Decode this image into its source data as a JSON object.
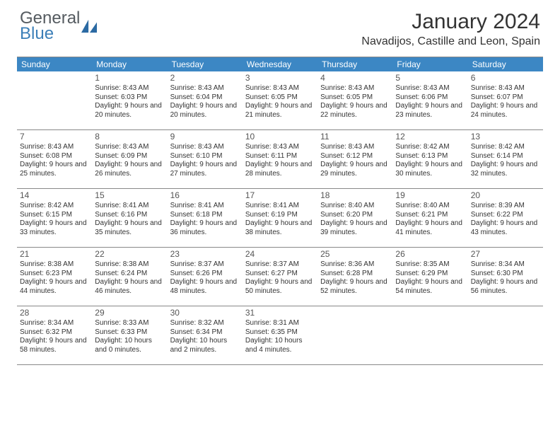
{
  "logo": {
    "text1": "General",
    "text2": "Blue"
  },
  "title": "January 2024",
  "location": "Navadijos, Castille and Leon, Spain",
  "colors": {
    "header_bg": "#3c87c4",
    "header_fg": "#ffffff",
    "border": "#888888",
    "logo_gray": "#555b60",
    "logo_blue": "#3c7fb8"
  },
  "days_of_week": [
    "Sunday",
    "Monday",
    "Tuesday",
    "Wednesday",
    "Thursday",
    "Friday",
    "Saturday"
  ],
  "weeks": [
    [
      null,
      {
        "n": "1",
        "sunrise": "8:43 AM",
        "sunset": "6:03 PM",
        "daylight": "9 hours and 20 minutes."
      },
      {
        "n": "2",
        "sunrise": "8:43 AM",
        "sunset": "6:04 PM",
        "daylight": "9 hours and 20 minutes."
      },
      {
        "n": "3",
        "sunrise": "8:43 AM",
        "sunset": "6:05 PM",
        "daylight": "9 hours and 21 minutes."
      },
      {
        "n": "4",
        "sunrise": "8:43 AM",
        "sunset": "6:05 PM",
        "daylight": "9 hours and 22 minutes."
      },
      {
        "n": "5",
        "sunrise": "8:43 AM",
        "sunset": "6:06 PM",
        "daylight": "9 hours and 23 minutes."
      },
      {
        "n": "6",
        "sunrise": "8:43 AM",
        "sunset": "6:07 PM",
        "daylight": "9 hours and 24 minutes."
      }
    ],
    [
      {
        "n": "7",
        "sunrise": "8:43 AM",
        "sunset": "6:08 PM",
        "daylight": "9 hours and 25 minutes."
      },
      {
        "n": "8",
        "sunrise": "8:43 AM",
        "sunset": "6:09 PM",
        "daylight": "9 hours and 26 minutes."
      },
      {
        "n": "9",
        "sunrise": "8:43 AM",
        "sunset": "6:10 PM",
        "daylight": "9 hours and 27 minutes."
      },
      {
        "n": "10",
        "sunrise": "8:43 AM",
        "sunset": "6:11 PM",
        "daylight": "9 hours and 28 minutes."
      },
      {
        "n": "11",
        "sunrise": "8:43 AM",
        "sunset": "6:12 PM",
        "daylight": "9 hours and 29 minutes."
      },
      {
        "n": "12",
        "sunrise": "8:42 AM",
        "sunset": "6:13 PM",
        "daylight": "9 hours and 30 minutes."
      },
      {
        "n": "13",
        "sunrise": "8:42 AM",
        "sunset": "6:14 PM",
        "daylight": "9 hours and 32 minutes."
      }
    ],
    [
      {
        "n": "14",
        "sunrise": "8:42 AM",
        "sunset": "6:15 PM",
        "daylight": "9 hours and 33 minutes."
      },
      {
        "n": "15",
        "sunrise": "8:41 AM",
        "sunset": "6:16 PM",
        "daylight": "9 hours and 35 minutes."
      },
      {
        "n": "16",
        "sunrise": "8:41 AM",
        "sunset": "6:18 PM",
        "daylight": "9 hours and 36 minutes."
      },
      {
        "n": "17",
        "sunrise": "8:41 AM",
        "sunset": "6:19 PM",
        "daylight": "9 hours and 38 minutes."
      },
      {
        "n": "18",
        "sunrise": "8:40 AM",
        "sunset": "6:20 PM",
        "daylight": "9 hours and 39 minutes."
      },
      {
        "n": "19",
        "sunrise": "8:40 AM",
        "sunset": "6:21 PM",
        "daylight": "9 hours and 41 minutes."
      },
      {
        "n": "20",
        "sunrise": "8:39 AM",
        "sunset": "6:22 PM",
        "daylight": "9 hours and 43 minutes."
      }
    ],
    [
      {
        "n": "21",
        "sunrise": "8:38 AM",
        "sunset": "6:23 PM",
        "daylight": "9 hours and 44 minutes."
      },
      {
        "n": "22",
        "sunrise": "8:38 AM",
        "sunset": "6:24 PM",
        "daylight": "9 hours and 46 minutes."
      },
      {
        "n": "23",
        "sunrise": "8:37 AM",
        "sunset": "6:26 PM",
        "daylight": "9 hours and 48 minutes."
      },
      {
        "n": "24",
        "sunrise": "8:37 AM",
        "sunset": "6:27 PM",
        "daylight": "9 hours and 50 minutes."
      },
      {
        "n": "25",
        "sunrise": "8:36 AM",
        "sunset": "6:28 PM",
        "daylight": "9 hours and 52 minutes."
      },
      {
        "n": "26",
        "sunrise": "8:35 AM",
        "sunset": "6:29 PM",
        "daylight": "9 hours and 54 minutes."
      },
      {
        "n": "27",
        "sunrise": "8:34 AM",
        "sunset": "6:30 PM",
        "daylight": "9 hours and 56 minutes."
      }
    ],
    [
      {
        "n": "28",
        "sunrise": "8:34 AM",
        "sunset": "6:32 PM",
        "daylight": "9 hours and 58 minutes."
      },
      {
        "n": "29",
        "sunrise": "8:33 AM",
        "sunset": "6:33 PM",
        "daylight": "10 hours and 0 minutes."
      },
      {
        "n": "30",
        "sunrise": "8:32 AM",
        "sunset": "6:34 PM",
        "daylight": "10 hours and 2 minutes."
      },
      {
        "n": "31",
        "sunrise": "8:31 AM",
        "sunset": "6:35 PM",
        "daylight": "10 hours and 4 minutes."
      },
      null,
      null,
      null
    ]
  ],
  "labels": {
    "sunrise": "Sunrise:",
    "sunset": "Sunset:",
    "daylight": "Daylight:"
  }
}
